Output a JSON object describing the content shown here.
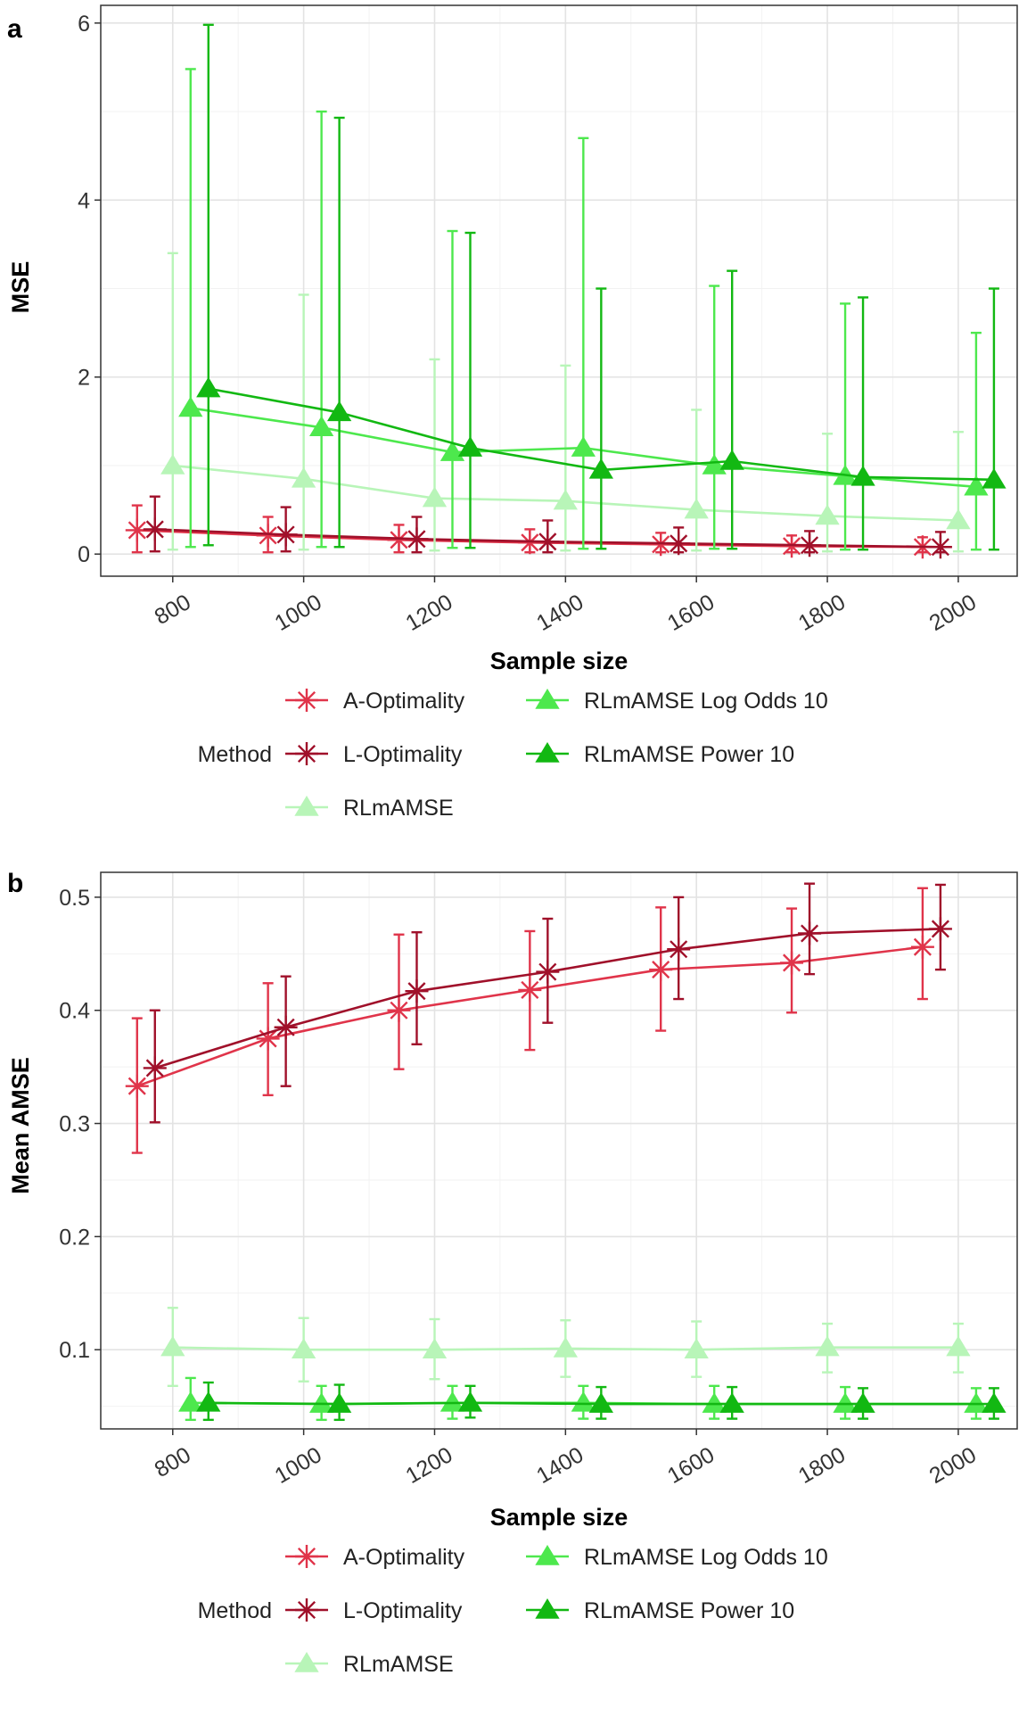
{
  "chart_data": [
    {
      "panel_label": "a",
      "type": "line",
      "xlabel": "Sample size",
      "ylabel": "MSE",
      "x": [
        800,
        1000,
        1200,
        1400,
        1600,
        1800,
        2000
      ],
      "xlim": [
        690,
        2090
      ],
      "ylim": [
        -0.25,
        6.2
      ],
      "xticks": [
        800,
        1000,
        1200,
        1400,
        1600,
        1800,
        2000
      ],
      "yticks": [
        0,
        2,
        4,
        6
      ],
      "grid": true,
      "legend_title": "Method",
      "legend_placement": "bottom",
      "series": [
        {
          "name": "A-Optimality",
          "color": "#e0344a",
          "marker": "asterisk",
          "dodge": -40,
          "values": [
            0.27,
            0.21,
            0.16,
            0.13,
            0.11,
            0.09,
            0.08
          ],
          "lower": [
            0.02,
            0.02,
            0.02,
            0.02,
            0.02,
            0.02,
            0.02
          ],
          "upper": [
            0.55,
            0.42,
            0.33,
            0.28,
            0.24,
            0.21,
            0.19
          ]
        },
        {
          "name": "L-Optimality",
          "color": "#a0102a",
          "marker": "asterisk",
          "dodge": -20,
          "values": [
            0.28,
            0.22,
            0.17,
            0.14,
            0.12,
            0.1,
            0.08
          ],
          "lower": [
            0.03,
            0.03,
            0.02,
            0.02,
            0.02,
            0.02,
            0.02
          ],
          "upper": [
            0.65,
            0.53,
            0.42,
            0.38,
            0.3,
            0.26,
            0.25
          ]
        },
        {
          "name": "RLmAMSE",
          "color": "#b8f5b8",
          "marker": "triangle",
          "dodge": 0,
          "values": [
            1.0,
            0.85,
            0.63,
            0.6,
            0.5,
            0.43,
            0.38
          ],
          "lower": [
            0.05,
            0.05,
            0.04,
            0.04,
            0.04,
            0.03,
            0.03
          ],
          "upper": [
            3.4,
            2.93,
            2.2,
            2.13,
            1.63,
            1.36,
            1.38
          ]
        },
        {
          "name": "RLmAMSE Log Odds 10",
          "color": "#4de84d",
          "marker": "triangle",
          "dodge": 20,
          "values": [
            1.65,
            1.43,
            1.15,
            1.2,
            1.0,
            0.88,
            0.76
          ],
          "lower": [
            0.08,
            0.08,
            0.07,
            0.06,
            0.06,
            0.05,
            0.05
          ],
          "upper": [
            5.48,
            5.0,
            3.65,
            4.7,
            3.03,
            2.83,
            2.5
          ]
        },
        {
          "name": "RLmAMSE Power 10",
          "color": "#12b812",
          "marker": "triangle",
          "dodge": 40,
          "values": [
            1.87,
            1.6,
            1.2,
            0.95,
            1.05,
            0.87,
            0.84
          ],
          "lower": [
            0.1,
            0.08,
            0.07,
            0.06,
            0.06,
            0.05,
            0.05
          ],
          "upper": [
            5.98,
            4.93,
            3.63,
            3.0,
            3.2,
            2.9,
            3.0
          ]
        }
      ]
    },
    {
      "panel_label": "b",
      "type": "line",
      "xlabel": "Sample size",
      "ylabel": "Mean AMSE",
      "x": [
        800,
        1000,
        1200,
        1400,
        1600,
        1800,
        2000
      ],
      "xlim": [
        690,
        2090
      ],
      "ylim": [
        0.03,
        0.522
      ],
      "xticks": [
        800,
        1000,
        1200,
        1400,
        1600,
        1800,
        2000
      ],
      "yticks": [
        0.1,
        0.2,
        0.3,
        0.4,
        0.5
      ],
      "grid": true,
      "legend_title": "Method",
      "legend_placement": "bottom",
      "series": [
        {
          "name": "A-Optimality",
          "color": "#e0344a",
          "marker": "asterisk",
          "dodge": -40,
          "values": [
            0.333,
            0.375,
            0.4,
            0.418,
            0.436,
            0.442,
            0.456
          ],
          "lower": [
            0.274,
            0.325,
            0.348,
            0.365,
            0.382,
            0.398,
            0.41
          ],
          "upper": [
            0.393,
            0.424,
            0.467,
            0.47,
            0.491,
            0.49,
            0.508
          ]
        },
        {
          "name": "L-Optimality",
          "color": "#a0102a",
          "marker": "asterisk",
          "dodge": -20,
          "values": [
            0.349,
            0.385,
            0.417,
            0.434,
            0.454,
            0.468,
            0.472
          ],
          "lower": [
            0.301,
            0.333,
            0.37,
            0.389,
            0.41,
            0.432,
            0.436
          ],
          "upper": [
            0.4,
            0.43,
            0.469,
            0.481,
            0.5,
            0.512,
            0.511
          ]
        },
        {
          "name": "RLmAMSE",
          "color": "#b8f5b8",
          "marker": "triangle",
          "dodge": 0,
          "values": [
            0.102,
            0.1,
            0.1,
            0.101,
            0.1,
            0.102,
            0.102
          ],
          "lower": [
            0.068,
            0.072,
            0.074,
            0.076,
            0.076,
            0.08,
            0.08
          ],
          "upper": [
            0.137,
            0.128,
            0.127,
            0.126,
            0.125,
            0.123,
            0.123
          ]
        },
        {
          "name": "RLmAMSE Log Odds 10",
          "color": "#4de84d",
          "marker": "triangle",
          "dodge": 20,
          "values": [
            0.053,
            0.052,
            0.053,
            0.053,
            0.052,
            0.052,
            0.052
          ],
          "lower": [
            0.038,
            0.038,
            0.039,
            0.039,
            0.039,
            0.039,
            0.039
          ],
          "upper": [
            0.075,
            0.068,
            0.068,
            0.068,
            0.068,
            0.067,
            0.066
          ]
        },
        {
          "name": "RLmAMSE Power 10",
          "color": "#12b812",
          "marker": "triangle",
          "dodge": 40,
          "values": [
            0.053,
            0.052,
            0.053,
            0.052,
            0.052,
            0.052,
            0.052
          ],
          "lower": [
            0.038,
            0.038,
            0.04,
            0.039,
            0.039,
            0.039,
            0.039
          ],
          "upper": [
            0.071,
            0.069,
            0.068,
            0.067,
            0.067,
            0.066,
            0.066
          ]
        }
      ]
    }
  ]
}
